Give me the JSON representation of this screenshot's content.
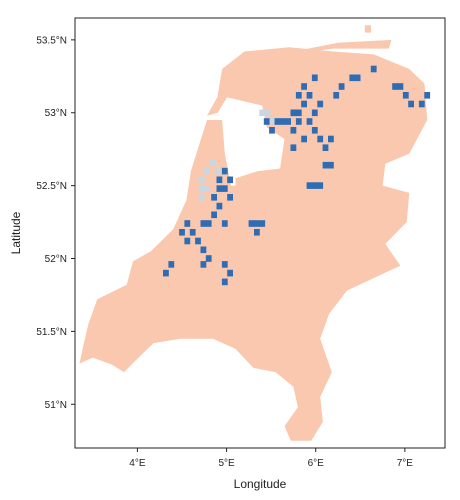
{
  "colors": {
    "land": "#f9c8ae",
    "water": "#2e6db4",
    "wetland": "#c9d7e3",
    "frame": "#222222",
    "background": "#ffffff"
  },
  "axes": {
    "xlabel": "Longitude",
    "ylabel": "Latitude",
    "xlim": [
      3.3,
      7.45
    ],
    "ylim": [
      50.7,
      53.65
    ],
    "x_ticks": [
      {
        "value": 4,
        "label": "4°E"
      },
      {
        "value": 5,
        "label": "5°E"
      },
      {
        "value": 6,
        "label": "6°E"
      },
      {
        "value": 7,
        "label": "7°E"
      }
    ],
    "y_ticks": [
      {
        "value": 51.0,
        "label": "51°N"
      },
      {
        "value": 51.5,
        "label": "51.5°N"
      },
      {
        "value": 52.0,
        "label": "52°N"
      },
      {
        "value": 52.5,
        "label": "52.5°N"
      },
      {
        "value": 53.0,
        "label": "53°N"
      },
      {
        "value": 53.5,
        "label": "53.5°N"
      }
    ]
  },
  "map": {
    "land_outline": [
      [
        3.35,
        51.28
      ],
      [
        3.5,
        51.32
      ],
      [
        3.72,
        51.27
      ],
      [
        3.85,
        51.22
      ],
      [
        3.98,
        51.3
      ],
      [
        4.18,
        51.42
      ],
      [
        4.48,
        51.45
      ],
      [
        4.85,
        51.45
      ],
      [
        5.1,
        51.38
      ],
      [
        5.3,
        51.25
      ],
      [
        5.55,
        51.22
      ],
      [
        5.75,
        51.12
      ],
      [
        5.8,
        50.98
      ],
      [
        5.65,
        50.85
      ],
      [
        5.72,
        50.75
      ],
      [
        5.95,
        50.75
      ],
      [
        6.08,
        50.88
      ],
      [
        6.05,
        51.05
      ],
      [
        6.18,
        51.22
      ],
      [
        6.05,
        51.45
      ],
      [
        6.15,
        51.62
      ],
      [
        6.35,
        51.78
      ],
      [
        6.7,
        51.88
      ],
      [
        6.95,
        51.95
      ],
      [
        6.78,
        52.1
      ],
      [
        7.02,
        52.25
      ],
      [
        7.05,
        52.45
      ],
      [
        6.75,
        52.5
      ],
      [
        6.78,
        52.65
      ],
      [
        7.05,
        52.72
      ],
      [
        7.25,
        52.95
      ],
      [
        7.22,
        53.2
      ],
      [
        7.05,
        53.3
      ],
      [
        6.65,
        53.4
      ],
      [
        6.2,
        53.42
      ],
      [
        5.7,
        53.45
      ],
      [
        5.2,
        53.42
      ],
      [
        4.95,
        53.3
      ],
      [
        4.9,
        53.12
      ],
      [
        5.05,
        53.1
      ],
      [
        5.4,
        53.05
      ],
      [
        5.45,
        52.9
      ],
      [
        5.65,
        52.82
      ],
      [
        5.6,
        52.62
      ],
      [
        5.2,
        52.5
      ],
      [
        5.05,
        52.5
      ],
      [
        4.98,
        52.72
      ],
      [
        4.95,
        52.95
      ],
      [
        4.78,
        52.95
      ],
      [
        4.6,
        52.6
      ],
      [
        4.55,
        52.4
      ],
      [
        4.4,
        52.2
      ],
      [
        4.15,
        52.05
      ],
      [
        3.95,
        51.98
      ],
      [
        3.88,
        51.82
      ],
      [
        3.55,
        51.72
      ],
      [
        3.45,
        51.55
      ],
      [
        3.4,
        51.42
      ]
    ],
    "land_extra": [
      [
        [
          5.1,
          52.45
        ],
        [
          5.55,
          52.45
        ],
        [
          5.65,
          52.62
        ],
        [
          5.35,
          52.6
        ],
        [
          5.1,
          52.55
        ]
      ],
      [
        [
          4.78,
          52.98
        ],
        [
          4.98,
          53.2
        ],
        [
          5.15,
          53.35
        ],
        [
          5.2,
          53.3
        ],
        [
          5.02,
          53.12
        ],
        [
          4.9,
          53.0
        ]
      ],
      [
        [
          5.28,
          53.35
        ],
        [
          5.75,
          53.42
        ],
        [
          6.25,
          53.48
        ],
        [
          6.85,
          53.5
        ],
        [
          6.82,
          53.44
        ],
        [
          6.2,
          53.44
        ],
        [
          5.7,
          53.4
        ],
        [
          5.3,
          53.3
        ]
      ],
      [
        [
          6.55,
          53.6
        ],
        [
          6.62,
          53.6
        ],
        [
          6.62,
          53.55
        ],
        [
          6.55,
          53.55
        ]
      ]
    ],
    "wetland_cells": [
      [
        4.72,
        52.48
      ],
      [
        4.78,
        52.48
      ],
      [
        4.72,
        52.54
      ],
      [
        4.78,
        52.6
      ],
      [
        4.84,
        52.66
      ],
      [
        4.9,
        52.6
      ],
      [
        5.4,
        53.0
      ],
      [
        5.46,
        53.0
      ],
      [
        5.52,
        52.95
      ],
      [
        4.72,
        52.42
      ]
    ],
    "water_cells": [
      [
        5.75,
        53.0
      ],
      [
        5.81,
        53.0
      ],
      [
        5.87,
        53.06
      ],
      [
        5.81,
        53.12
      ],
      [
        5.93,
        53.12
      ],
      [
        5.87,
        53.18
      ],
      [
        5.99,
        53.24
      ],
      [
        5.69,
        52.94
      ],
      [
        5.63,
        52.94
      ],
      [
        5.75,
        52.88
      ],
      [
        5.81,
        52.94
      ],
      [
        5.93,
        52.94
      ],
      [
        5.99,
        52.88
      ],
      [
        5.87,
        52.82
      ],
      [
        5.57,
        52.94
      ],
      [
        5.45,
        52.94
      ],
      [
        5.51,
        52.88
      ],
      [
        5.99,
        53.0
      ],
      [
        6.05,
        53.06
      ],
      [
        6.05,
        52.82
      ],
      [
        6.11,
        52.76
      ],
      [
        6.17,
        52.82
      ],
      [
        6.11,
        52.64
      ],
      [
        6.17,
        52.64
      ],
      [
        6.05,
        52.5
      ],
      [
        5.99,
        52.5
      ],
      [
        5.93,
        52.5
      ],
      [
        5.75,
        52.76
      ],
      [
        6.47,
        53.24
      ],
      [
        6.41,
        53.24
      ],
      [
        6.65,
        53.3
      ],
      [
        6.95,
        53.18
      ],
      [
        7.01,
        53.12
      ],
      [
        7.07,
        53.06
      ],
      [
        7.19,
        53.06
      ],
      [
        7.25,
        53.12
      ],
      [
        6.89,
        53.18
      ],
      [
        6.23,
        53.12
      ],
      [
        6.29,
        53.18
      ],
      [
        4.98,
        52.6
      ],
      [
        4.92,
        52.54
      ],
      [
        5.04,
        52.54
      ],
      [
        4.98,
        52.48
      ],
      [
        4.92,
        52.48
      ],
      [
        5.04,
        52.42
      ],
      [
        4.86,
        52.42
      ],
      [
        4.92,
        52.36
      ],
      [
        4.86,
        52.3
      ],
      [
        4.74,
        52.24
      ],
      [
        4.62,
        52.18
      ],
      [
        4.56,
        52.12
      ],
      [
        4.68,
        52.12
      ],
      [
        4.74,
        52.06
      ],
      [
        4.8,
        52.0
      ],
      [
        4.74,
        51.96
      ],
      [
        4.98,
        51.96
      ],
      [
        5.04,
        51.9
      ],
      [
        4.98,
        51.84
      ],
      [
        4.38,
        51.96
      ],
      [
        4.32,
        51.9
      ],
      [
        5.28,
        52.24
      ],
      [
        5.34,
        52.24
      ],
      [
        5.4,
        52.24
      ],
      [
        5.34,
        52.18
      ],
      [
        4.8,
        52.24
      ],
      [
        4.98,
        52.24
      ],
      [
        4.5,
        52.18
      ],
      [
        4.56,
        52.24
      ]
    ]
  }
}
